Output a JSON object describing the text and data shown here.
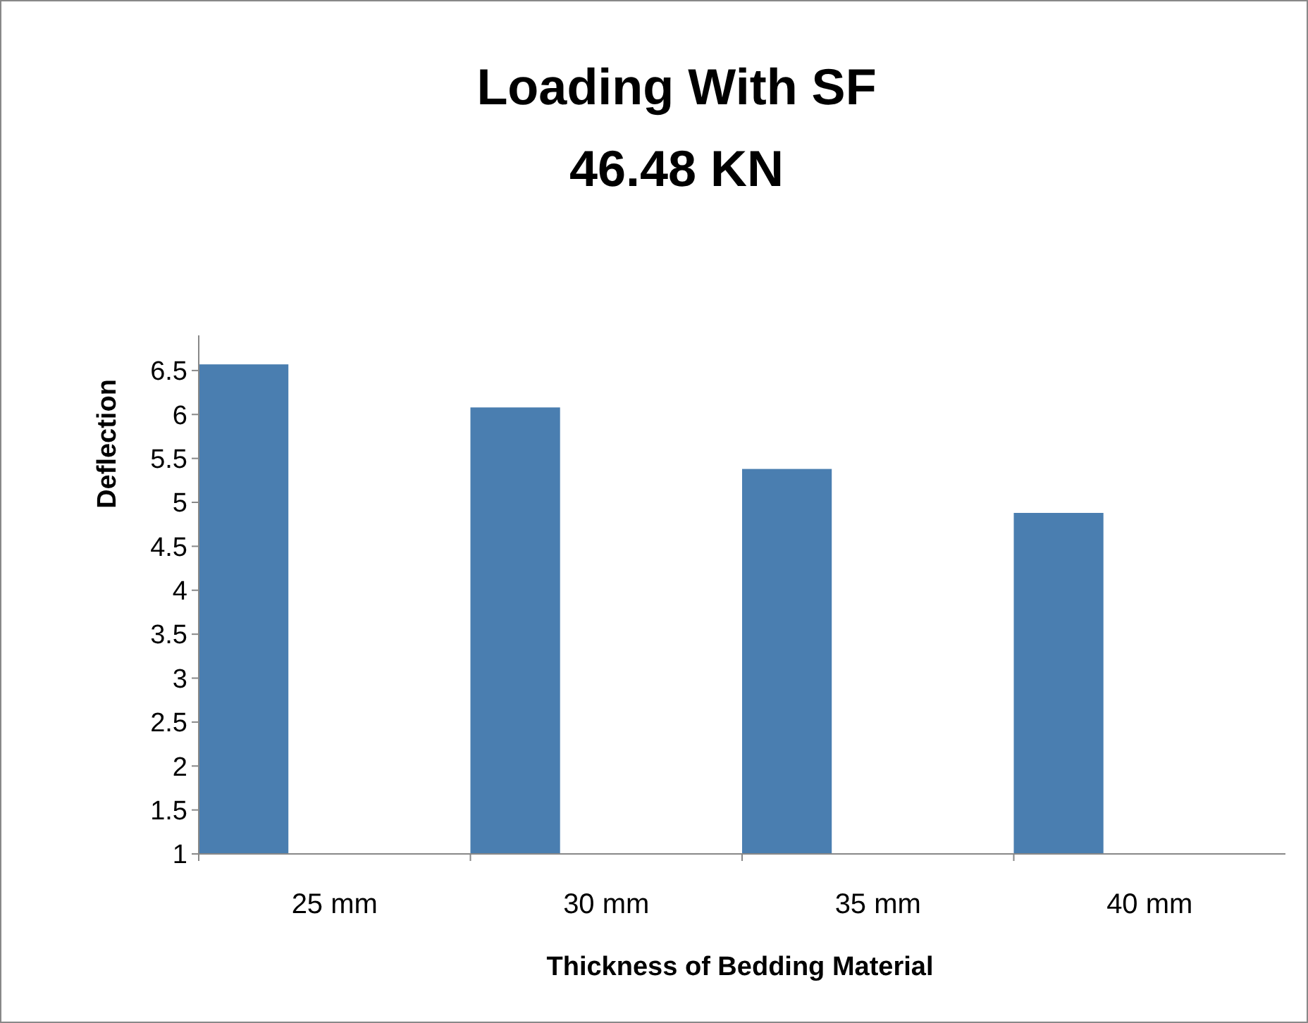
{
  "chart_data": {
    "type": "bar",
    "title": "Loading With SF\n46.48 KN",
    "xlabel": "Thickness of Bedding Material",
    "ylabel": "Deflection",
    "categories": [
      "25 mm",
      "30 mm",
      "35 mm",
      "40 mm"
    ],
    "values": [
      6.57,
      6.08,
      5.38,
      4.88
    ],
    "color": "#4a7eb0",
    "ylim": [
      1,
      6.9
    ],
    "yticks": [
      1,
      1.5,
      2,
      2.5,
      3,
      3.5,
      4,
      4.5,
      5,
      5.5,
      6,
      6.5
    ],
    "grid": false
  }
}
